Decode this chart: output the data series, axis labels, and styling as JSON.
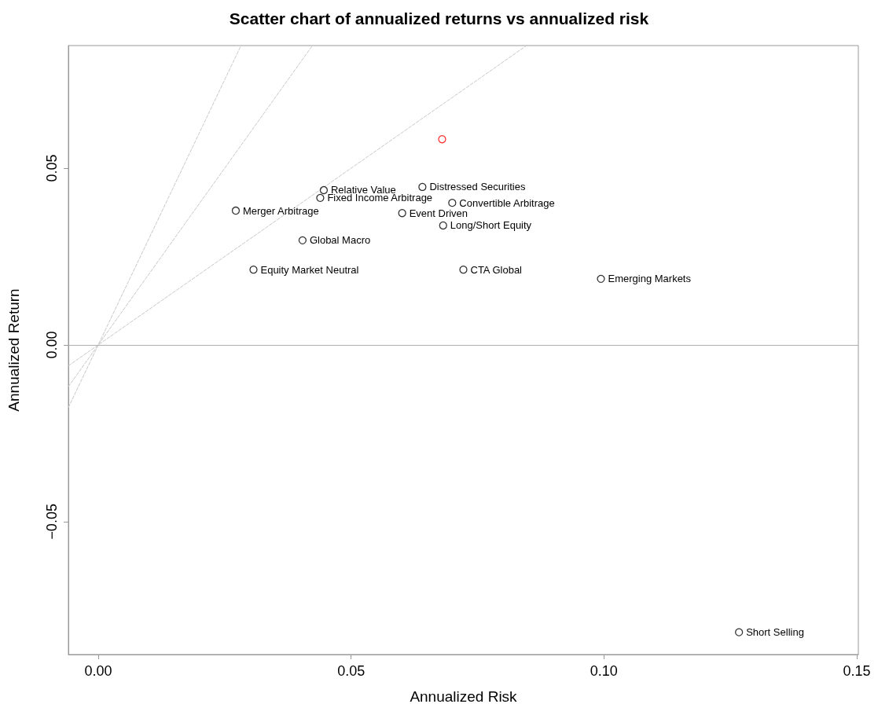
{
  "chart_data": {
    "type": "scatter",
    "title": "Scatter chart of annualized returns vs annualized risk",
    "xlabel": "Annualized Risk",
    "ylabel": "Annualized Return",
    "xlim": [
      -0.0059,
      0.1503
    ],
    "ylim": [
      -0.0876,
      0.0847
    ],
    "xticks": [
      {
        "value": 0,
        "label": "0.00"
      },
      {
        "value": 0.05,
        "label": "0.05"
      },
      {
        "value": 0.1,
        "label": "0.10"
      },
      {
        "value": 0.15,
        "label": "0.15"
      }
    ],
    "yticks": [
      {
        "value": -0.05,
        "label": "−0.05"
      },
      {
        "value": 0,
        "label": "0.00"
      },
      {
        "value": 0.05,
        "label": "0.05"
      }
    ],
    "grid": false,
    "ref_lines": [
      {
        "axis": "y",
        "value": 0,
        "color": "#b0b0b0"
      }
    ],
    "series": [
      {
        "type": "line",
        "color": "#c8c8c8",
        "line_style": "dashed",
        "marker": "none",
        "x": [
          -0.0059,
          0.0847
        ],
        "values": [
          -0.0059,
          0.0847
        ]
      },
      {
        "type": "line",
        "color": "#c8c8c8",
        "line_style": "dashed",
        "marker": "none",
        "x": [
          -0.0059,
          0.04235
        ],
        "values": [
          -0.0118,
          0.0847
        ]
      },
      {
        "type": "line",
        "color": "#c8c8c8",
        "line_style": "dashed",
        "marker": "none",
        "x": [
          -0.0059,
          0.02823
        ],
        "values": [
          -0.0177,
          0.0847
        ]
      },
      {
        "marker": "circle",
        "x": [
          0.068,
          0.0446,
          0.0439,
          0.0641,
          0.07,
          0.0601,
          0.0682,
          0.0272,
          0.0404,
          0.0307,
          0.0722,
          0.0994,
          0.1267
        ],
        "values": [
          0.0582,
          0.0438,
          0.0416,
          0.0447,
          0.0402,
          0.0373,
          0.0338,
          0.038,
          0.0296,
          0.0213,
          0.0213,
          0.0187,
          -0.0813
        ],
        "colors": [
          "#ff0000",
          "#000000",
          "#000000",
          "#000000",
          "#000000",
          "#000000",
          "#000000",
          "#000000",
          "#000000",
          "#000000",
          "#000000",
          "#000000",
          "#000000"
        ]
      }
    ],
    "annotations": [
      {
        "text": "Relative Value",
        "x": 0.0446,
        "y": 0.0438
      },
      {
        "text": "Fixed Income Arbitrage",
        "x": 0.0439,
        "y": 0.0416
      },
      {
        "text": "Distressed Securities",
        "x": 0.0641,
        "y": 0.0447
      },
      {
        "text": "Convertible Arbitrage",
        "x": 0.07,
        "y": 0.0402
      },
      {
        "text": "Event Driven",
        "x": 0.0601,
        "y": 0.0373
      },
      {
        "text": "Long/Short Equity",
        "x": 0.0682,
        "y": 0.0338
      },
      {
        "text": "Merger Arbitrage",
        "x": 0.0272,
        "y": 0.038
      },
      {
        "text": "Global Macro",
        "x": 0.0404,
        "y": 0.0296
      },
      {
        "text": "Equity Market Neutral",
        "x": 0.0307,
        "y": 0.0213
      },
      {
        "text": "CTA Global",
        "x": 0.0722,
        "y": 0.0213
      },
      {
        "text": "Emerging Markets",
        "x": 0.0994,
        "y": 0.0187
      },
      {
        "text": "Short Selling",
        "x": 0.1267,
        "y": -0.0813
      }
    ]
  }
}
